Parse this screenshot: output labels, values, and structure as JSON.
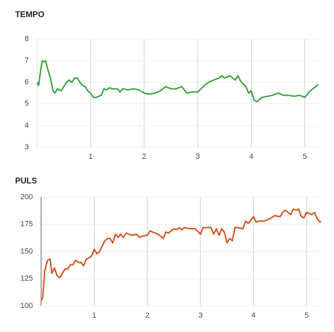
{
  "chart_data": [
    {
      "type": "line",
      "title": "TEMPO",
      "xlim": [
        0,
        5.25
      ],
      "ylim": [
        3,
        8
      ],
      "xticks": [
        1,
        2,
        3,
        4,
        5
      ],
      "yticks": [
        3,
        4,
        5,
        6,
        7,
        8
      ],
      "grid": true,
      "x": [
        0,
        0.03,
        0.07,
        0.1,
        0.13,
        0.16,
        0.2,
        0.25,
        0.3,
        0.33,
        0.38,
        0.45,
        0.5,
        0.55,
        0.6,
        0.65,
        0.7,
        0.75,
        0.8,
        0.85,
        0.9,
        0.95,
        1.0,
        1.05,
        1.1,
        1.2,
        1.25,
        1.3,
        1.35,
        1.4,
        1.5,
        1.55,
        1.6,
        1.7,
        1.8,
        1.9,
        2.0,
        2.1,
        2.2,
        2.3,
        2.4,
        2.5,
        2.6,
        2.7,
        2.8,
        2.9,
        3.0,
        3.1,
        3.2,
        3.3,
        3.4,
        3.45,
        3.5,
        3.6,
        3.7,
        3.75,
        3.8,
        3.9,
        3.95,
        4.0,
        4.05,
        4.1,
        4.2,
        4.3,
        4.4,
        4.5,
        4.6,
        4.7,
        4.8,
        4.9,
        5.0,
        5.1,
        5.2,
        5.25
      ],
      "series": [
        {
          "name": "TEMPO",
          "color": "#3a9e3a",
          "values": [
            6.0,
            5.85,
            6.6,
            7.0,
            6.95,
            7.0,
            6.6,
            6.2,
            5.6,
            5.5,
            5.7,
            5.6,
            5.8,
            6.0,
            6.1,
            6.0,
            6.2,
            6.2,
            6.0,
            5.85,
            5.8,
            5.6,
            5.5,
            5.3,
            5.3,
            5.4,
            5.7,
            5.65,
            5.75,
            5.7,
            5.7,
            5.55,
            5.7,
            5.65,
            5.7,
            5.65,
            5.5,
            5.45,
            5.5,
            5.6,
            5.8,
            5.7,
            5.7,
            5.8,
            5.5,
            5.55,
            5.55,
            5.8,
            6.0,
            6.1,
            6.2,
            6.3,
            6.2,
            6.3,
            6.1,
            6.3,
            6.05,
            5.8,
            5.5,
            5.6,
            5.2,
            5.1,
            5.3,
            5.35,
            5.4,
            5.5,
            5.4,
            5.4,
            5.35,
            5.4,
            5.3,
            5.6,
            5.8,
            5.9
          ]
        }
      ]
    },
    {
      "type": "line",
      "title": "PULS",
      "xlim": [
        0,
        5.27
      ],
      "ylim": [
        100,
        200
      ],
      "xticks": [
        1,
        2,
        3,
        4,
        5
      ],
      "yticks": [
        100,
        125,
        150,
        175,
        200
      ],
      "grid": true,
      "x": [
        0,
        0.03,
        0.07,
        0.12,
        0.17,
        0.2,
        0.25,
        0.3,
        0.35,
        0.4,
        0.45,
        0.5,
        0.55,
        0.6,
        0.65,
        0.7,
        0.75,
        0.8,
        0.85,
        0.9,
        0.95,
        1.0,
        1.05,
        1.1,
        1.15,
        1.2,
        1.25,
        1.3,
        1.35,
        1.4,
        1.45,
        1.5,
        1.55,
        1.6,
        1.7,
        1.8,
        1.85,
        1.9,
        2.0,
        2.05,
        2.1,
        2.15,
        2.2,
        2.3,
        2.35,
        2.4,
        2.5,
        2.55,
        2.6,
        2.65,
        2.7,
        2.8,
        2.9,
        3.0,
        3.05,
        3.1,
        3.2,
        3.25,
        3.3,
        3.35,
        3.4,
        3.45,
        3.5,
        3.55,
        3.6,
        3.65,
        3.7,
        3.8,
        3.85,
        3.9,
        4.0,
        4.05,
        4.1,
        4.2,
        4.3,
        4.4,
        4.5,
        4.55,
        4.6,
        4.7,
        4.75,
        4.8,
        4.85,
        4.9,
        4.95,
        5.0,
        5.1,
        5.15,
        5.2,
        5.25,
        5.27
      ],
      "series": [
        {
          "name": "PULS",
          "color": "#d4501e",
          "values": [
            105,
            108,
            133,
            142,
            143,
            130,
            135,
            128,
            126,
            130,
            134,
            134,
            138,
            138,
            142,
            140,
            140,
            137,
            143,
            144,
            146,
            152,
            148,
            150,
            155,
            160,
            162,
            162,
            158,
            166,
            163,
            166,
            163,
            167,
            165,
            166,
            163,
            164,
            165,
            169,
            168,
            167,
            166,
            162,
            168,
            167,
            171,
            170,
            172,
            170,
            172,
            171,
            171,
            166,
            172,
            172,
            172,
            166,
            171,
            165,
            171,
            168,
            158,
            162,
            160,
            172,
            172,
            171,
            178,
            176,
            182,
            177,
            178,
            178,
            180,
            183,
            182,
            186,
            188,
            184,
            189,
            188,
            189,
            182,
            181,
            186,
            184,
            186,
            180,
            177,
            178
          ]
        }
      ]
    }
  ]
}
